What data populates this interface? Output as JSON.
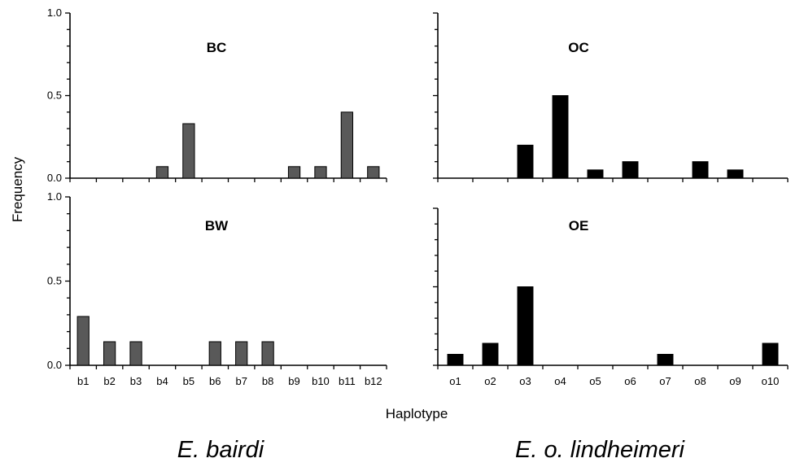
{
  "figure": {
    "ylabel": "Frequency",
    "xlabel": "Haplotype",
    "species_left": "E. bairdi",
    "species_right": "E. o. lindheimeri"
  },
  "chart_data": [
    {
      "type": "bar",
      "title": "BC",
      "categories": [
        "b1",
        "b2",
        "b3",
        "b4",
        "b5",
        "b6",
        "b7",
        "b8",
        "b9",
        "b10",
        "b11",
        "b12"
      ],
      "values": [
        0,
        0,
        0,
        0.07,
        0.33,
        0,
        0,
        0,
        0.07,
        0.07,
        0.4,
        0.07
      ],
      "ylim": [
        0,
        1.0
      ],
      "yticks": [
        "0.0",
        "0.5",
        "1.0"
      ],
      "bar_color": "#595959",
      "show_x_labels": false
    },
    {
      "type": "bar",
      "title": "OC",
      "categories": [
        "o1",
        "o2",
        "o3",
        "o4",
        "o5",
        "o6",
        "o7",
        "o8",
        "o9",
        "o10"
      ],
      "values": [
        0,
        0,
        0.2,
        0.5,
        0.05,
        0.1,
        0,
        0.1,
        0.05,
        0
      ],
      "ylim": [
        0,
        1.0
      ],
      "yticks": [],
      "bar_color": "#000000",
      "show_x_labels": false
    },
    {
      "type": "bar",
      "title": "BW",
      "categories": [
        "b1",
        "b2",
        "b3",
        "b4",
        "b5",
        "b6",
        "b7",
        "b8",
        "b9",
        "b10",
        "b11",
        "b12"
      ],
      "values": [
        0.29,
        0.14,
        0.14,
        0,
        0,
        0.14,
        0.14,
        0.14,
        0,
        0,
        0,
        0
      ],
      "ylim": [
        0,
        1.0
      ],
      "yticks": [
        "0.0",
        "0.5",
        "1.0"
      ],
      "bar_color": "#595959",
      "show_x_labels": true
    },
    {
      "type": "bar",
      "title": "OE",
      "categories": [
        "o1",
        "o2",
        "o3",
        "o4",
        "o5",
        "o6",
        "o7",
        "o8",
        "o9",
        "o10"
      ],
      "values": [
        0.07,
        0.14,
        0.5,
        0,
        0,
        0,
        0.07,
        0,
        0,
        0.14
      ],
      "ylim": [
        0,
        1.0
      ],
      "yticks": [],
      "bar_color": "#000000",
      "show_x_labels": true
    }
  ]
}
